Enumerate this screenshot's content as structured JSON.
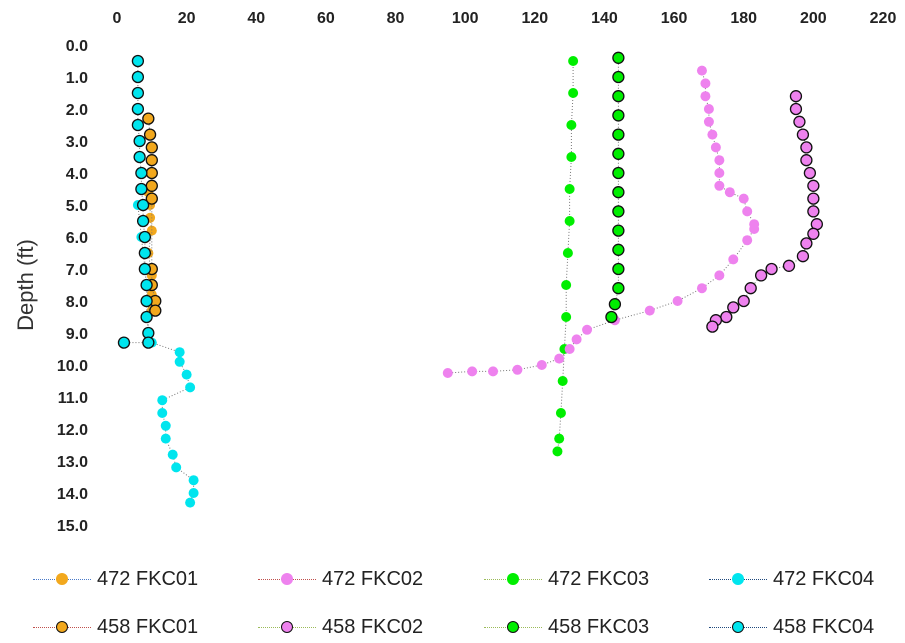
{
  "chart_data": {
    "type": "scatter",
    "title": "",
    "xlabel": "",
    "ylabel": "Depth (ft)",
    "xlim": [
      0,
      220
    ],
    "ylim": [
      0,
      15
    ],
    "y_reversed": true,
    "x_axis_position": "top",
    "x_ticks": [
      "0",
      "20",
      "40",
      "60",
      "80",
      "100",
      "120",
      "140",
      "160",
      "180",
      "200",
      "220"
    ],
    "y_ticks": [
      "0.0",
      "1.0",
      "2.0",
      "3.0",
      "4.0",
      "5.0",
      "6.0",
      "7.0",
      "8.0",
      "9.0",
      "10.0",
      "11.0",
      "12.0",
      "13.0",
      "14.0",
      "15.0"
    ],
    "grid": false,
    "legend_position": "bottom",
    "series": [
      {
        "name": "472 FKC01",
        "color": "#F2A81D",
        "outline": false,
        "line_color": "#4a7ac9",
        "points": [
          [
            9,
            4.6
          ],
          [
            9.5,
            5.0
          ],
          [
            9.5,
            5.4
          ],
          [
            10,
            5.8
          ],
          [
            9,
            6.5
          ],
          [
            10,
            7.2
          ],
          [
            10,
            7.8
          ],
          [
            10,
            8.3
          ]
        ]
      },
      {
        "name": "472 FKC02",
        "color": "#EE82EE",
        "outline": false,
        "line_color": "#c0504d",
        "points": [
          [
            168,
            0.8
          ],
          [
            169,
            1.2
          ],
          [
            169,
            1.6
          ],
          [
            170,
            2.0
          ],
          [
            170,
            2.4
          ],
          [
            171,
            2.8
          ],
          [
            172,
            3.2
          ],
          [
            173,
            3.6
          ],
          [
            173,
            4.0
          ],
          [
            173,
            4.4
          ],
          [
            176,
            4.6
          ],
          [
            180,
            4.8
          ],
          [
            181,
            5.2
          ],
          [
            183,
            5.6
          ],
          [
            183,
            5.75
          ],
          [
            181,
            6.1
          ],
          [
            177,
            6.7
          ],
          [
            173,
            7.2
          ],
          [
            168,
            7.6
          ],
          [
            161,
            8.0
          ],
          [
            153,
            8.3
          ],
          [
            143,
            8.6
          ],
          [
            135,
            8.9
          ],
          [
            132,
            9.2
          ],
          [
            130,
            9.5
          ],
          [
            127,
            9.8
          ],
          [
            122,
            10.0
          ],
          [
            115,
            10.15
          ],
          [
            108,
            10.2
          ],
          [
            102,
            10.2
          ],
          [
            95,
            10.25
          ]
        ]
      },
      {
        "name": "472 FKC03",
        "color": "#00EE00",
        "outline": false,
        "line_color": "#9bbb59",
        "points": [
          [
            131,
            0.5
          ],
          [
            131,
            1.5
          ],
          [
            130.5,
            2.5
          ],
          [
            130.5,
            3.5
          ],
          [
            130,
            4.5
          ],
          [
            130,
            5.5
          ],
          [
            129.5,
            6.5
          ],
          [
            129,
            7.5
          ],
          [
            129,
            8.5
          ],
          [
            128.5,
            9.5
          ],
          [
            128,
            10.5
          ],
          [
            127.5,
            11.5
          ],
          [
            127,
            12.3
          ],
          [
            126.5,
            12.7
          ]
        ]
      },
      {
        "name": "472 FKC04",
        "color": "#00E5EE",
        "outline": false,
        "line_color": "#1f497d",
        "points": [
          [
            6,
            5.0
          ],
          [
            7,
            6.0
          ],
          [
            8,
            7.0
          ],
          [
            9,
            8.0
          ],
          [
            9,
            9.0
          ],
          [
            10,
            9.3
          ],
          [
            18,
            9.6
          ],
          [
            18,
            9.9
          ],
          [
            20,
            10.3
          ],
          [
            21,
            10.7
          ],
          [
            13,
            11.1
          ],
          [
            13,
            11.5
          ],
          [
            14,
            11.9
          ],
          [
            14,
            12.3
          ],
          [
            16,
            12.8
          ],
          [
            17,
            13.2
          ],
          [
            22,
            13.6
          ],
          [
            22,
            14.0
          ],
          [
            21,
            14.3
          ]
        ]
      },
      {
        "name": "458 FKC01",
        "color": "#F2A81D",
        "outline": true,
        "line_color": "#c0504d",
        "points": [
          [
            9,
            2.3
          ],
          [
            9.5,
            2.8
          ],
          [
            10,
            3.2
          ],
          [
            10,
            3.6
          ],
          [
            10,
            4.0
          ],
          [
            10,
            4.4
          ],
          [
            10,
            4.8
          ],
          [
            10,
            7.0
          ],
          [
            10,
            7.5
          ],
          [
            11,
            8.0
          ],
          [
            11,
            8.3
          ]
        ]
      },
      {
        "name": "458 FKC02",
        "color": "#EE82EE",
        "outline": true,
        "line_color": "#9bbb59",
        "points": [
          [
            195,
            1.6
          ],
          [
            195,
            2.0
          ],
          [
            196,
            2.4
          ],
          [
            197,
            2.8
          ],
          [
            198,
            3.2
          ],
          [
            198,
            3.6
          ],
          [
            199,
            4.0
          ],
          [
            200,
            4.4
          ],
          [
            200,
            4.8
          ],
          [
            200,
            5.2
          ],
          [
            201,
            5.6
          ],
          [
            200,
            5.9
          ],
          [
            198,
            6.2
          ],
          [
            197,
            6.6
          ],
          [
            193,
            6.9
          ],
          [
            188,
            7.0
          ],
          [
            185,
            7.2
          ],
          [
            182,
            7.6
          ],
          [
            180,
            8.0
          ],
          [
            177,
            8.2
          ],
          [
            175,
            8.5
          ],
          [
            172,
            8.6
          ],
          [
            171,
            8.8
          ]
        ]
      },
      {
        "name": "458 FKC03",
        "color": "#00EE00",
        "outline": true,
        "line_color": "#9bbb59",
        "points": [
          [
            144,
            0.4
          ],
          [
            144,
            1.0
          ],
          [
            144,
            1.6
          ],
          [
            144,
            2.2
          ],
          [
            144,
            2.8
          ],
          [
            144,
            3.4
          ],
          [
            144,
            4.0
          ],
          [
            144,
            4.6
          ],
          [
            144,
            5.2
          ],
          [
            144,
            5.8
          ],
          [
            144,
            6.4
          ],
          [
            144,
            7.0
          ],
          [
            144,
            7.6
          ],
          [
            143,
            8.1
          ],
          [
            142,
            8.5
          ]
        ]
      },
      {
        "name": "458 FKC04",
        "color": "#00E5EE",
        "outline": true,
        "line_color": "#1f497d",
        "points": [
          [
            6,
            0.5
          ],
          [
            6,
            1.0
          ],
          [
            6,
            1.5
          ],
          [
            6,
            2.0
          ],
          [
            6,
            2.5
          ],
          [
            6.5,
            3.0
          ],
          [
            6.5,
            3.5
          ],
          [
            7,
            4.0
          ],
          [
            7,
            4.5
          ],
          [
            7.5,
            5.0
          ],
          [
            7.5,
            5.5
          ],
          [
            8,
            6.0
          ],
          [
            8,
            6.5
          ],
          [
            8,
            7.0
          ],
          [
            8.5,
            7.5
          ],
          [
            8.5,
            8.0
          ],
          [
            8.5,
            8.5
          ],
          [
            9,
            9.0
          ],
          [
            9,
            9.3
          ],
          [
            2,
            9.3
          ]
        ]
      }
    ]
  }
}
